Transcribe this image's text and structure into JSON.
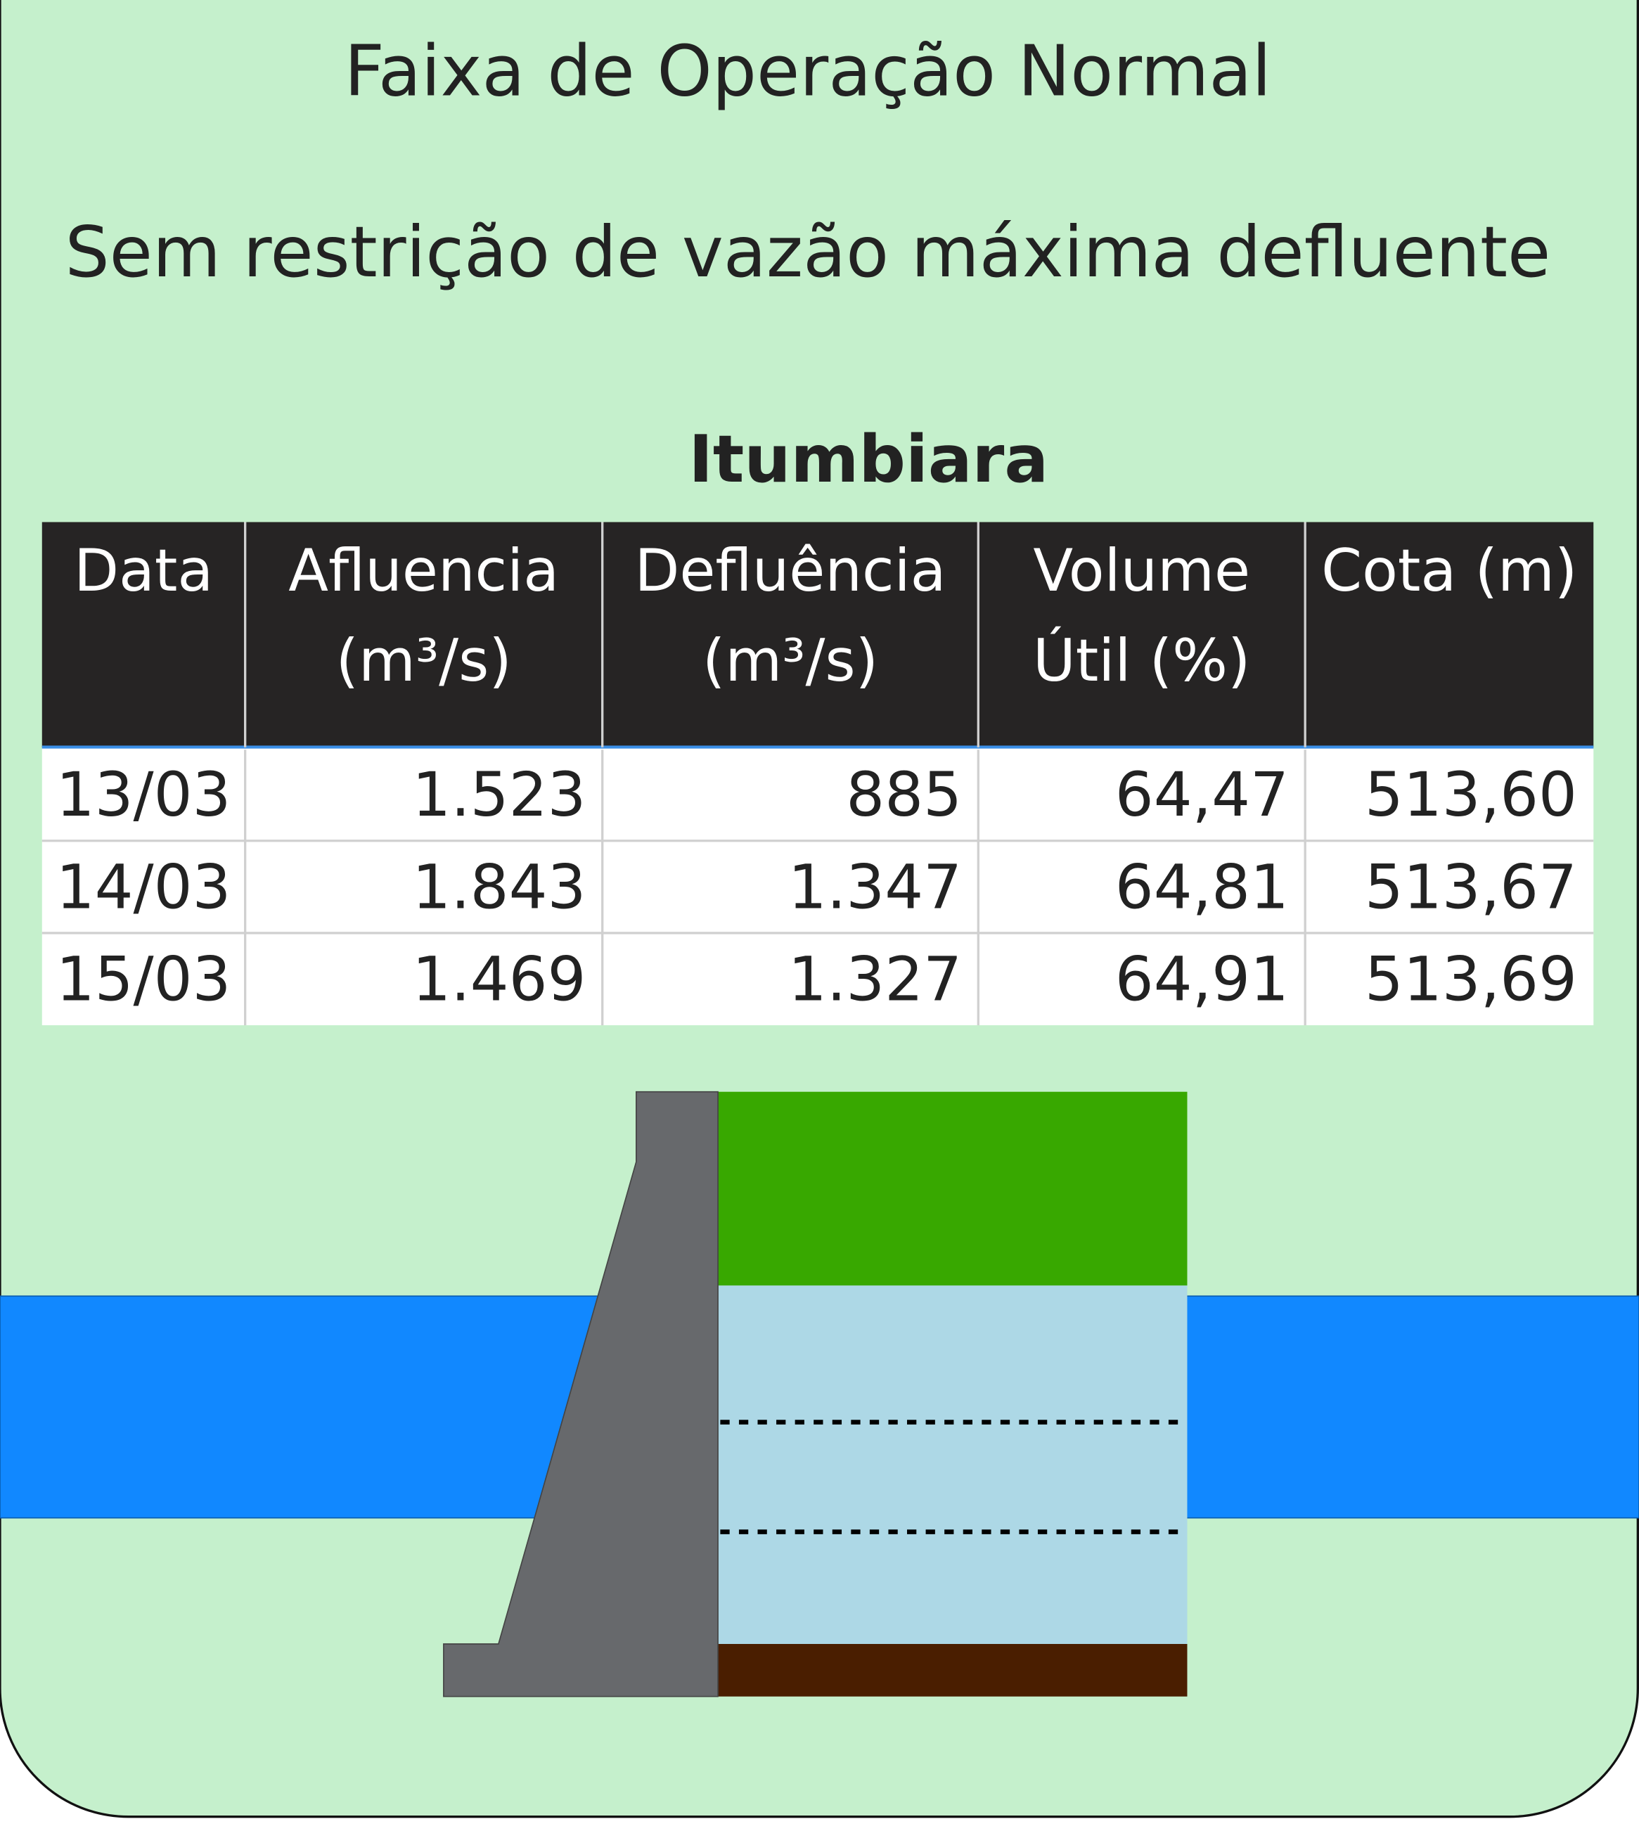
{
  "title": "Faixa de Operação Normal",
  "subtitle": "Sem restrição de vazão máxima defluente",
  "table": {
    "name": "Itumbiara",
    "headers": [
      [
        "Data"
      ],
      [
        "Afluencia",
        "(m³/s)"
      ],
      [
        "Defluência",
        "(m³/s)"
      ],
      [
        "Volume",
        "Útil (%)"
      ],
      [
        "Cota (m)"
      ]
    ],
    "rows": [
      [
        "13/03",
        "1.523",
        "885",
        "64,47",
        "513,60"
      ],
      [
        "14/03",
        "1.843",
        "1.347",
        "64,81",
        "513,67"
      ],
      [
        "15/03",
        "1.469",
        "1.327",
        "64,91",
        "513,69"
      ]
    ]
  }
}
